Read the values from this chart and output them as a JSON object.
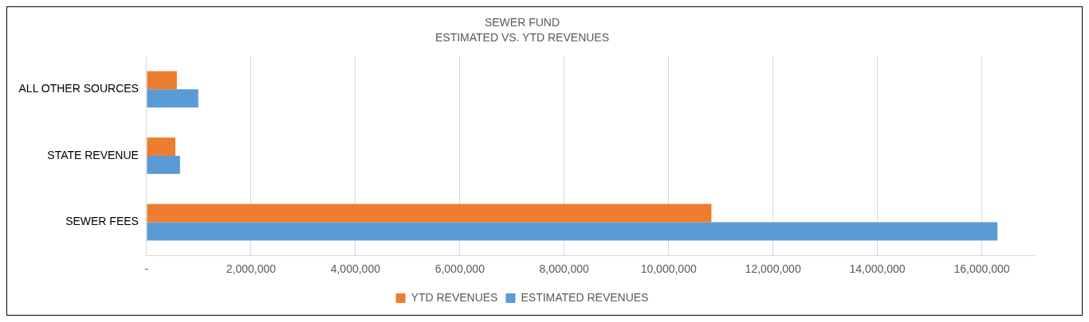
{
  "chart_data": {
    "type": "bar",
    "orientation": "horizontal",
    "title": "SEWER FUND",
    "subtitle": "ESTIMATED VS. YTD REVENUES",
    "categories": [
      "ALL OTHER SOURCES",
      "STATE REVENUE",
      "SEWER FEES"
    ],
    "series": [
      {
        "name": "YTD REVENUES",
        "color": "#ed7d31",
        "values": [
          580000,
          550000,
          10820000
        ]
      },
      {
        "name": "ESTIMATED REVENUES",
        "color": "#5b9bd5",
        "values": [
          990000,
          640000,
          16300000
        ]
      }
    ],
    "xlim": [
      0,
      17000000
    ],
    "xticks": [
      {
        "value": 0,
        "label": "-"
      },
      {
        "value": 2000000,
        "label": "2,000,000"
      },
      {
        "value": 4000000,
        "label": "4,000,000"
      },
      {
        "value": 6000000,
        "label": "6,000,000"
      },
      {
        "value": 8000000,
        "label": "8,000,000"
      },
      {
        "value": 10000000,
        "label": "10,000,000"
      },
      {
        "value": 12000000,
        "label": "12,000,000"
      },
      {
        "value": 14000000,
        "label": "14,000,000"
      },
      {
        "value": 16000000,
        "label": "16,000,000"
      }
    ],
    "grid": "x",
    "legend": "bottom"
  }
}
